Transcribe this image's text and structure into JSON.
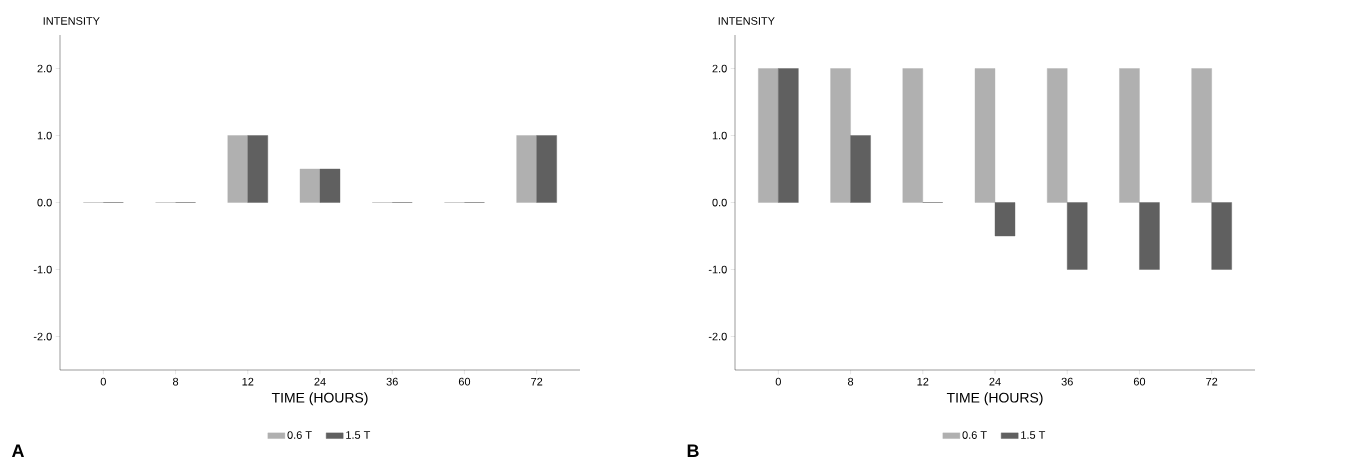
{
  "chart_data": [
    {
      "type": "bar",
      "ylabel": "INTENSITY",
      "xlabel": "TIME (HOURS)",
      "annotations": [
        "A"
      ],
      "categories": [
        "0",
        "8",
        "12",
        "24",
        "36",
        "60",
        "72"
      ],
      "series": [
        {
          "name": "0.6 T",
          "color": "#b0b0b0",
          "values": [
            0,
            0,
            1,
            0.5,
            0,
            0,
            1
          ]
        },
        {
          "name": "1.5 T",
          "color": "#606060",
          "values": [
            0,
            0,
            1,
            0.5,
            0,
            0,
            1
          ]
        }
      ],
      "ylim": [
        -2.5,
        2.5
      ],
      "yticks": [
        {
          "value": -2,
          "label": "-2.0"
        },
        {
          "value": -1,
          "label": "-1.0"
        },
        {
          "value": 0,
          "label": "0.0"
        },
        {
          "value": 1,
          "label": "1.0"
        },
        {
          "value": 2,
          "label": "2.0"
        }
      ],
      "grid": false,
      "legend": "bottom"
    },
    {
      "type": "bar",
      "ylabel": "INTENSITY",
      "xlabel": "TIME (HOURS)",
      "annotations": [
        "B"
      ],
      "categories": [
        "0",
        "8",
        "12",
        "24",
        "36",
        "60",
        "72"
      ],
      "series": [
        {
          "name": "0.6 T",
          "color": "#b0b0b0",
          "values": [
            2,
            2,
            2,
            2,
            2,
            2,
            2
          ]
        },
        {
          "name": "1.5 T",
          "color": "#606060",
          "values": [
            2,
            1,
            0,
            -0.5,
            -1,
            -1,
            -1
          ]
        }
      ],
      "ylim": [
        -2.5,
        2.5
      ],
      "yticks": [
        {
          "value": -2,
          "label": "-2.0"
        },
        {
          "value": -1,
          "label": "-1.0"
        },
        {
          "value": 0,
          "label": "0.0"
        },
        {
          "value": 1,
          "label": "1.0"
        },
        {
          "value": 2,
          "label": "2.0"
        }
      ],
      "grid": false,
      "legend": "bottom"
    }
  ]
}
